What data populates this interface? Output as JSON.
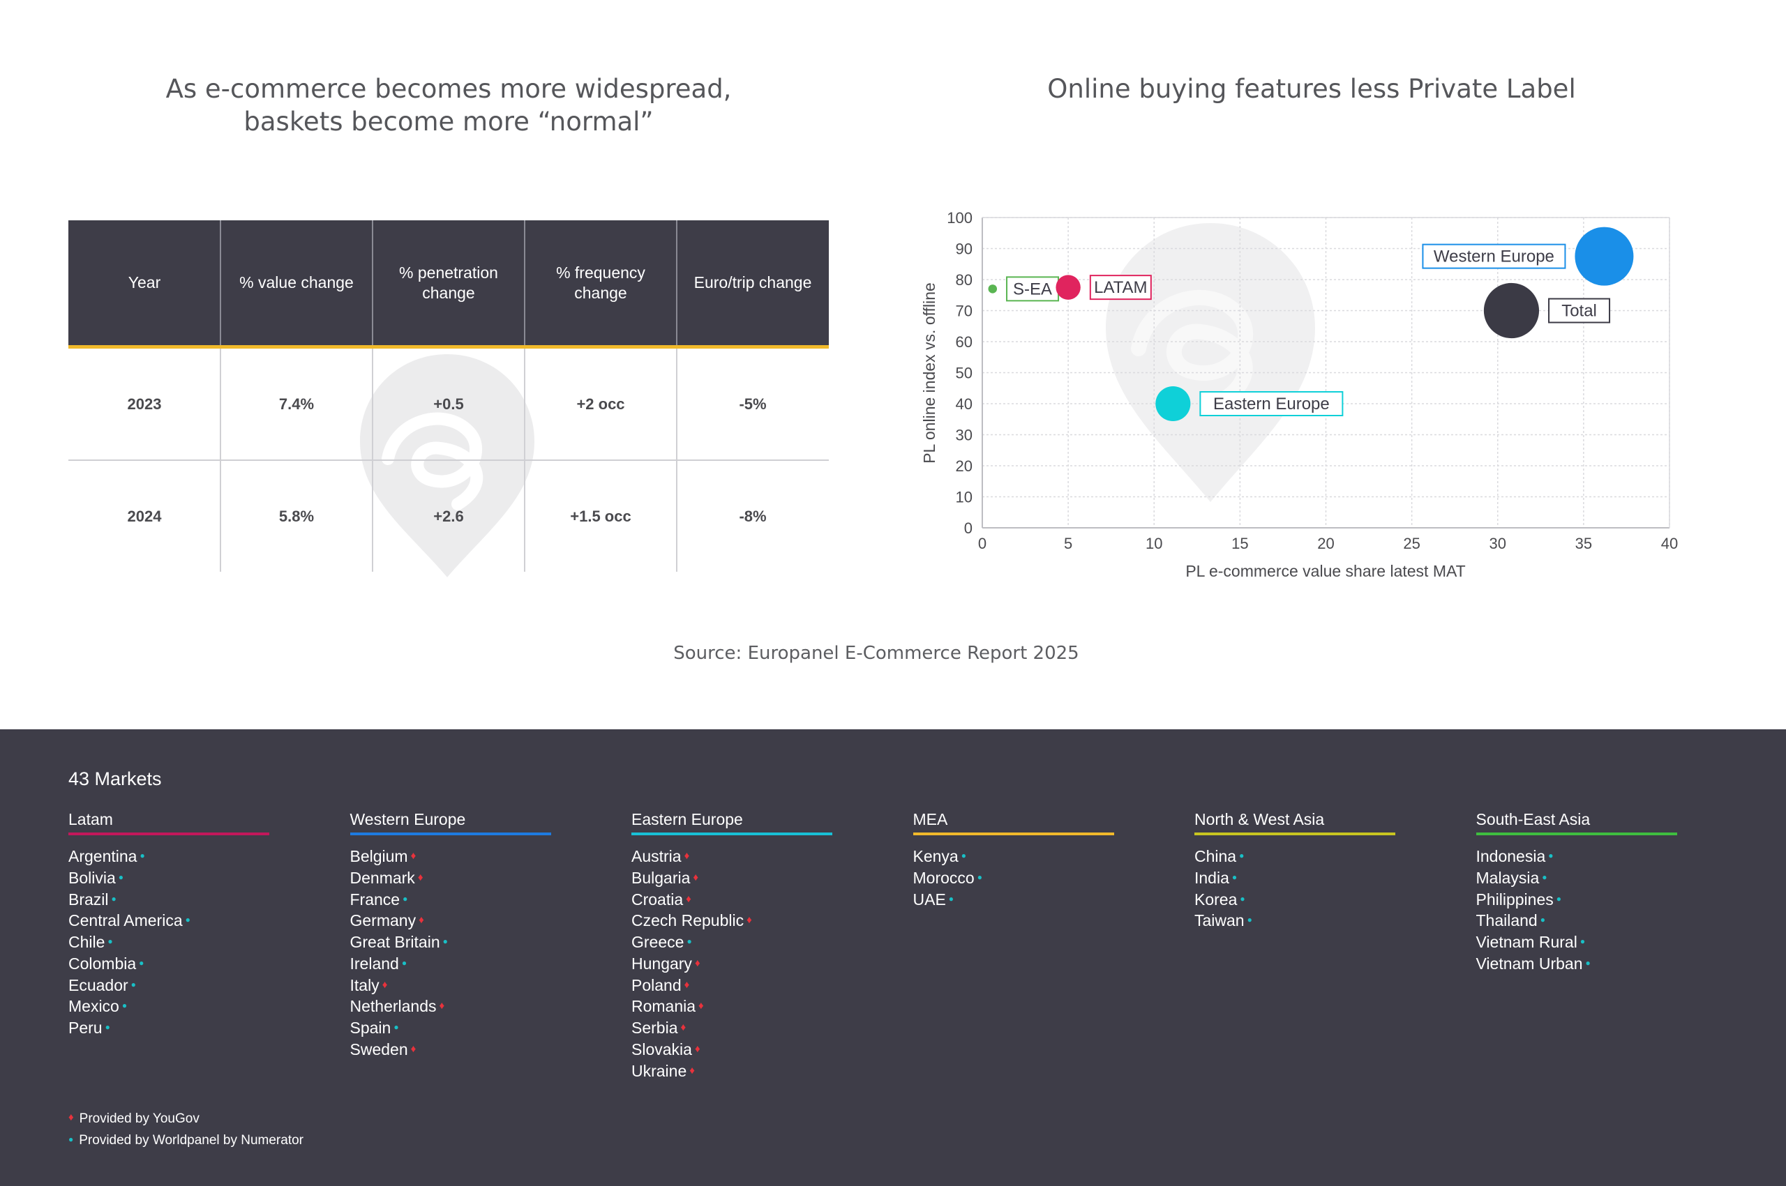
{
  "left_panel": {
    "title": "As e-commerce becomes more widespread,\nbaskets become more “normal”",
    "table": {
      "headers": [
        "Year",
        "% value change",
        "% penetration change",
        "% frequency change",
        "Euro/trip change"
      ],
      "rows": [
        [
          "2023",
          "7.4%",
          "+0.5",
          "+2 occ",
          "-5%"
        ],
        [
          "2024",
          "5.8%",
          "+2.6",
          "+1.5 occ",
          "-8%"
        ]
      ]
    }
  },
  "right_panel": {
    "title": "Online buying features less Private Label"
  },
  "chart_data": {
    "type": "scatter",
    "variant": "bubble",
    "title": "Online buying features less Private Label",
    "xlabel": "PL e-commerce value share latest MAT",
    "ylabel": "PL online index vs. offline",
    "xlim": [
      0,
      40
    ],
    "ylim": [
      0,
      100
    ],
    "xticks": [
      0,
      5,
      10,
      15,
      20,
      25,
      30,
      35,
      40
    ],
    "yticks": [
      0,
      10,
      20,
      30,
      40,
      50,
      60,
      70,
      80,
      90,
      100
    ],
    "grid": true,
    "points": [
      {
        "label": "S-EA",
        "x": 0.6,
        "y": 77,
        "size": 1,
        "color": "#5ab552"
      },
      {
        "label": "LATAM",
        "x": 5.0,
        "y": 77.5,
        "size": 8,
        "color": "#e0245e"
      },
      {
        "label": "Eastern Europe",
        "x": 11.1,
        "y": 40,
        "size": 16,
        "color": "#0fd0d8"
      },
      {
        "label": "Western Europe",
        "x": 36.2,
        "y": 87.5,
        "size": 45,
        "color": "#1a8fe8"
      },
      {
        "label": "Total",
        "x": 30.8,
        "y": 70,
        "size": 40,
        "color": "#3b3a45"
      }
    ]
  },
  "source": "Source: Europanel E-Commerce Report 2025",
  "markets": {
    "title": "43 Markets",
    "regions": [
      {
        "name": "Latam",
        "color": "#c2185b",
        "items": [
          {
            "name": "Argentina",
            "provider": "worldpanel"
          },
          {
            "name": "Bolivia",
            "provider": "worldpanel"
          },
          {
            "name": "Brazil",
            "provider": "worldpanel"
          },
          {
            "name": "Central America",
            "provider": "worldpanel"
          },
          {
            "name": "Chile",
            "provider": "worldpanel"
          },
          {
            "name": "Colombia",
            "provider": "worldpanel"
          },
          {
            "name": "Ecuador",
            "provider": "worldpanel"
          },
          {
            "name": "Mexico",
            "provider": "worldpanel"
          },
          {
            "name": "Peru",
            "provider": "worldpanel"
          }
        ]
      },
      {
        "name": "Western Europe",
        "color": "#1e7be0",
        "items": [
          {
            "name": "Belgium",
            "provider": "yougov"
          },
          {
            "name": "Denmark",
            "provider": "yougov"
          },
          {
            "name": "France",
            "provider": "worldpanel"
          },
          {
            "name": "Germany",
            "provider": "yougov"
          },
          {
            "name": "Great Britain",
            "provider": "worldpanel"
          },
          {
            "name": "Ireland",
            "provider": "worldpanel"
          },
          {
            "name": "Italy",
            "provider": "yougov"
          },
          {
            "name": "Netherlands",
            "provider": "yougov"
          },
          {
            "name": "Spain",
            "provider": "worldpanel"
          },
          {
            "name": "Sweden",
            "provider": "yougov"
          }
        ]
      },
      {
        "name": "Eastern Europe",
        "color": "#19c0d6",
        "items": [
          {
            "name": "Austria",
            "provider": "yougov"
          },
          {
            "name": "Bulgaria",
            "provider": "yougov"
          },
          {
            "name": "Croatia",
            "provider": "yougov"
          },
          {
            "name": "Czech Republic",
            "provider": "yougov"
          },
          {
            "name": "Greece",
            "provider": "worldpanel"
          },
          {
            "name": "Hungary",
            "provider": "yougov"
          },
          {
            "name": "Poland",
            "provider": "yougov"
          },
          {
            "name": "Romania",
            "provider": "yougov"
          },
          {
            "name": "Serbia",
            "provider": "yougov"
          },
          {
            "name": "Slovakia",
            "provider": "yougov"
          },
          {
            "name": "Ukraine",
            "provider": "yougov"
          }
        ]
      },
      {
        "name": "MEA",
        "color": "#f0b92b",
        "items": [
          {
            "name": "Kenya",
            "provider": "worldpanel"
          },
          {
            "name": "Morocco",
            "provider": "worldpanel"
          },
          {
            "name": "UAE",
            "provider": "worldpanel"
          }
        ]
      },
      {
        "name": "North & West Asia",
        "color": "#c8c521",
        "items": [
          {
            "name": "China",
            "provider": "worldpanel"
          },
          {
            "name": "India",
            "provider": "worldpanel"
          },
          {
            "name": "Korea",
            "provider": "worldpanel"
          },
          {
            "name": "Taiwan",
            "provider": "worldpanel"
          }
        ]
      },
      {
        "name": "South-East Asia",
        "color": "#3fbd3f",
        "items": [
          {
            "name": "Indonesia",
            "provider": "worldpanel"
          },
          {
            "name": "Malaysia",
            "provider": "worldpanel"
          },
          {
            "name": "Philippines",
            "provider": "worldpanel"
          },
          {
            "name": "Thailand",
            "provider": "worldpanel"
          },
          {
            "name": "Vietnam Rural",
            "provider": "worldpanel"
          },
          {
            "name": "Vietnam Urban",
            "provider": "worldpanel"
          }
        ]
      }
    ],
    "legend": {
      "yougov": "Provided by YouGov",
      "worldpanel": "Provided by Worldpanel by Numerator"
    }
  }
}
